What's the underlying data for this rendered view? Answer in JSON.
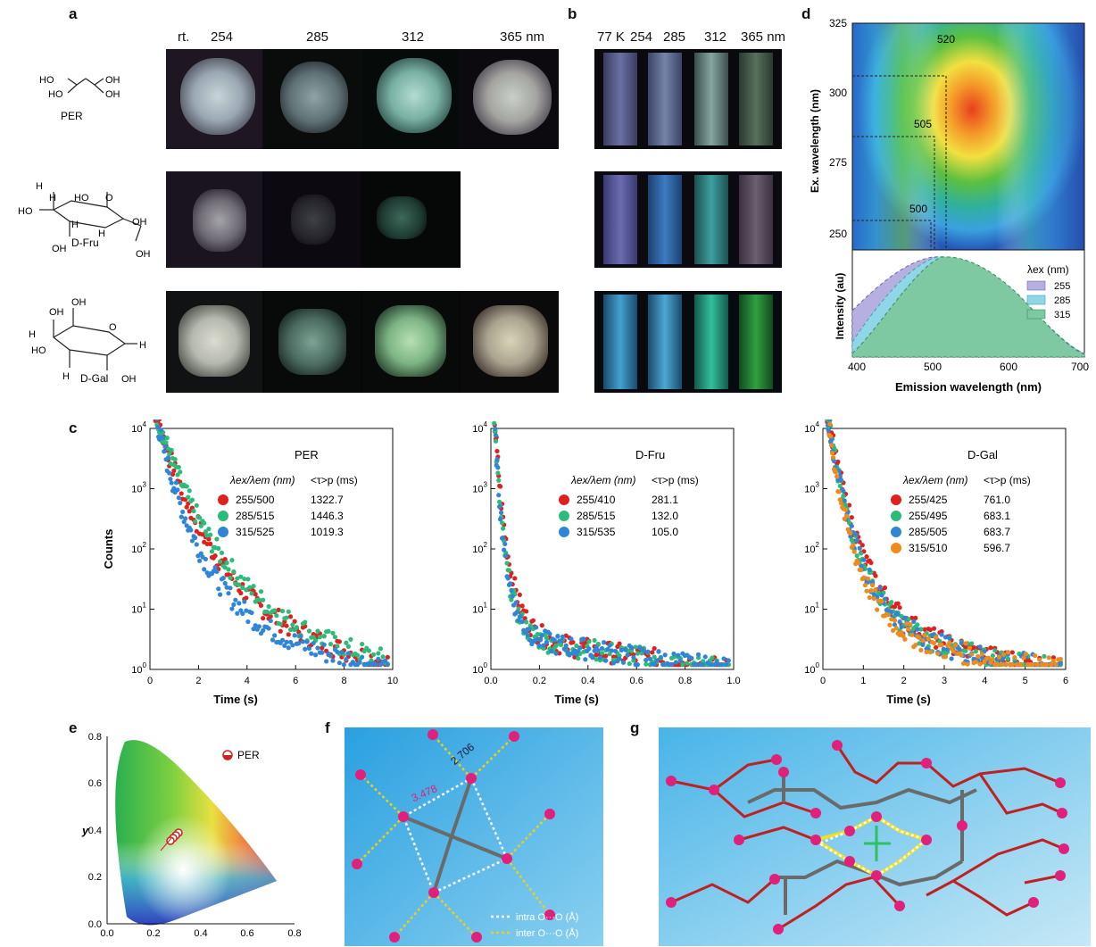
{
  "panels": {
    "a": "a",
    "b": "b",
    "c": "c",
    "d": "d",
    "e": "e",
    "f": "f",
    "g": "g"
  },
  "panel_a": {
    "wavelengths": [
      "rt.",
      "254",
      "285",
      "312",
      "365 nm"
    ],
    "molecules": [
      "PER",
      "D-Fru",
      "D-Gal"
    ]
  },
  "panel_b": {
    "wavelengths": [
      "77 K",
      "254",
      "285",
      "312",
      "365 nm"
    ]
  },
  "panel_d": {
    "ylabel": "Ex. wavelength (nm)",
    "xlabel": "Emission wavelength (nm)",
    "intensity_label": "Intensity (au)",
    "yticks": [
      "325",
      "300",
      "275",
      "250"
    ],
    "xticks": [
      "400",
      "500",
      "600",
      "700"
    ],
    "annotations": [
      "520",
      "505",
      "500"
    ],
    "legend_title": "λex (nm)",
    "legend": [
      "255",
      "285",
      "315"
    ],
    "legend_colors": [
      "#b6b0e0",
      "#8fd6e6",
      "#7ec9a2"
    ]
  },
  "panel_c": {
    "ylabel": "Counts",
    "xlabel": "Time (s)",
    "yticks": [
      "10^0",
      "10^1",
      "10^2",
      "10^3",
      "10^4"
    ],
    "header_ex": "λex/λem (nm)",
    "header_tau": "<τ>p (ms)",
    "plots": [
      {
        "title": "PER",
        "xticks": [
          "0",
          "2",
          "4",
          "6",
          "8",
          "10"
        ],
        "rows": [
          {
            "ex_em": "255/500",
            "tau": "1322.7",
            "color": "#e02020"
          },
          {
            "ex_em": "285/515",
            "tau": "1446.3",
            "color": "#2cbc7a"
          },
          {
            "ex_em": "315/525",
            "tau": "1019.3",
            "color": "#2f86d6"
          }
        ]
      },
      {
        "title": "D-Fru",
        "xticks": [
          "0.0",
          "0.2",
          "0.4",
          "0.6",
          "0.8",
          "1.0"
        ],
        "rows": [
          {
            "ex_em": "255/410",
            "tau": "281.1",
            "color": "#e02020"
          },
          {
            "ex_em": "285/515",
            "tau": "132.0",
            "color": "#2cbc7a"
          },
          {
            "ex_em": "315/535",
            "tau": "105.0",
            "color": "#2f86d6"
          }
        ]
      },
      {
        "title": "D-Gal",
        "xticks": [
          "0",
          "1",
          "2",
          "3",
          "4",
          "5",
          "6"
        ],
        "rows": [
          {
            "ex_em": "255/425",
            "tau": "761.0",
            "color": "#e02020"
          },
          {
            "ex_em": "255/495",
            "tau": "683.1",
            "color": "#2cbc7a"
          },
          {
            "ex_em": "285/505",
            "tau": "683.7",
            "color": "#2f86d6"
          },
          {
            "ex_em": "315/510",
            "tau": "596.7",
            "color": "#f08a1c"
          }
        ]
      }
    ]
  },
  "panel_e": {
    "ylabel": "y",
    "xticks": [
      "0.0",
      "0.2",
      "0.4",
      "0.6",
      "0.8"
    ],
    "yticks": [
      "0.0",
      "0.2",
      "0.4",
      "0.6",
      "0.8"
    ],
    "legend": "PER"
  },
  "panel_f": {
    "dist_inter": "2.706",
    "dist_intra": "3.478",
    "legend_intra": "intra O···O (Å)",
    "legend_inter": "inter O···O (Å)"
  },
  "chart_data": [
    {
      "type": "scatter",
      "title": "PER",
      "xlabel": "Time (s)",
      "ylabel": "Counts",
      "xlim": [
        0,
        10
      ],
      "ylim": [
        1,
        10000
      ],
      "yscale": "log",
      "series": [
        {
          "name": "255/500",
          "tau_ms": 1322.7
        },
        {
          "name": "285/515",
          "tau_ms": 1446.3
        },
        {
          "name": "315/525",
          "tau_ms": 1019.3
        }
      ]
    },
    {
      "type": "scatter",
      "title": "D-Fru",
      "xlabel": "Time (s)",
      "ylabel": "",
      "xlim": [
        0,
        1.0
      ],
      "ylim": [
        1,
        10000
      ],
      "yscale": "log",
      "series": [
        {
          "name": "255/410",
          "tau_ms": 281.1
        },
        {
          "name": "285/515",
          "tau_ms": 132.0
        },
        {
          "name": "315/535",
          "tau_ms": 105.0
        }
      ]
    },
    {
      "type": "scatter",
      "title": "D-Gal",
      "xlabel": "Time (s)",
      "ylabel": "",
      "xlim": [
        0,
        6
      ],
      "ylim": [
        1,
        10000
      ],
      "yscale": "log",
      "series": [
        {
          "name": "255/425",
          "tau_ms": 761.0
        },
        {
          "name": "255/495",
          "tau_ms": 683.1
        },
        {
          "name": "285/505",
          "tau_ms": 683.7
        },
        {
          "name": "315/510",
          "tau_ms": 596.7
        }
      ]
    },
    {
      "type": "area",
      "title": "",
      "xlabel": "Emission wavelength (nm)",
      "ylabel": "Intensity (au)",
      "xlim": [
        400,
        700
      ],
      "series": [
        {
          "name": "255",
          "peak_nm": 500
        },
        {
          "name": "285",
          "peak_nm": 505
        },
        {
          "name": "315",
          "peak_nm": 520
        }
      ]
    }
  ]
}
